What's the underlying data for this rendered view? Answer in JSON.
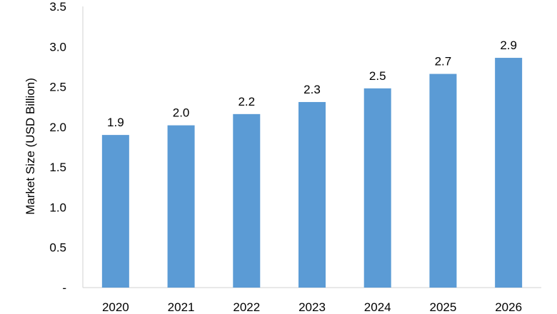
{
  "chart_data": {
    "type": "bar",
    "title": "",
    "xlabel": "",
    "ylabel": "Market Size (USD Billion)",
    "categories": [
      "2020",
      "2021",
      "2022",
      "2023",
      "2024",
      "2025",
      "2026"
    ],
    "values": [
      1.9,
      2.02,
      2.16,
      2.31,
      2.48,
      2.66,
      2.86
    ],
    "data_labels": [
      "1.9",
      "2.0",
      "2.2",
      "2.3",
      "2.5",
      "2.7",
      "2.9"
    ],
    "ylim": [
      0,
      3.5
    ],
    "y_ticks": [
      0,
      0.5,
      1.0,
      1.5,
      2.0,
      2.5,
      3.0,
      3.5
    ],
    "y_tick_labels": [
      "-",
      "0.5",
      "1.0",
      "1.5",
      "2.0",
      "2.5",
      "3.0",
      "3.5"
    ],
    "grid": false,
    "legend": "none",
    "bar_color": "#5b9bd5",
    "axis_color": "#d9d9d9"
  }
}
